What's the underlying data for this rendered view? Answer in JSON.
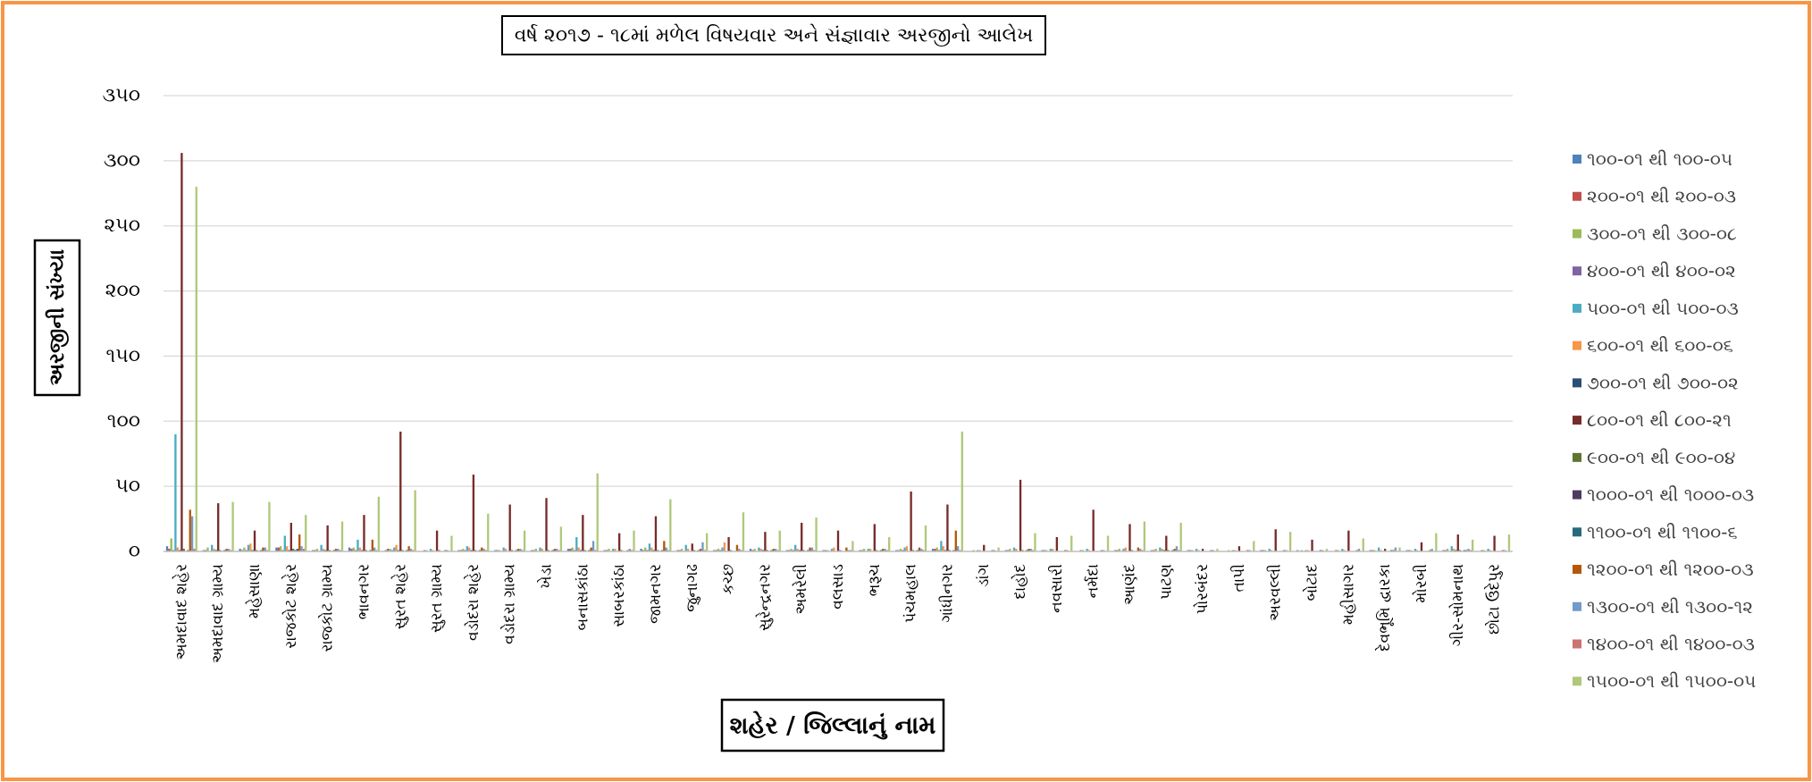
{
  "chart_data": {
    "type": "bar",
    "title": "વર્ષ ૨૦૧૭ - ૧૮માં મળેલ વિષયવાર અને સંજ્ઞાવાર અરજીનો આલેખ",
    "xlabel": "શહેર / જિલ્લાનું નામ",
    "ylabel": "અરજીની સંખ્યા",
    "ylim": [
      0,
      350
    ],
    "y_ticks": [
      0,
      50,
      100,
      150,
      200,
      250,
      300,
      350
    ],
    "y_tick_labels": [
      "૦",
      "૫૦",
      "૧૦૦",
      "૧૫૦",
      "૨૦૦",
      "૨૫૦",
      "૩૦૦",
      "૩૫૦"
    ],
    "grid": true,
    "legend": "right",
    "categories": [
      "અમદાવાદ શહેર",
      "અમદાવાદ ગ્રામ્ય",
      "મહેસાણા",
      "રાજકોટ શહેર",
      "રાજકોટ ગ્રામ્ય",
      "ભાવનગર",
      "સુરત શહેર",
      "સુરત ગ્રામ્ય",
      "વડોદરા શહેર",
      "વડોદરા ગ્રામ્ય",
      "ખેડા",
      "બનાસકાંઠા",
      "સાબરકાંઠા",
      "જામનગર",
      "જુનાગઢ",
      "કચ્છ",
      "સુરેન્દ્રનગર",
      "અમરેલી",
      "વલસાડ",
      "ભરૂચ",
      "પંચમહાલ",
      "ગાંધીનગર",
      "ડાંગ",
      "દાહોદ",
      "નવસારી",
      "નર્મદા",
      "આણંદ",
      "પાટણ",
      "પોરબંદર",
      "તાપી",
      "અરવલ્લી",
      "બોટાદ",
      "મહીસાગર",
      "દેવભૂમિ દ્વારકા",
      "મોરબી",
      "ગીર-સોમનાથ",
      "છોટા ઉદેપુર"
    ],
    "series": [
      {
        "name": "૧૦૦-૦૧ થી ૧૦૦-૦૫",
        "color": "#4F81BD",
        "values": [
          4,
          1,
          2,
          3,
          1,
          3,
          1,
          0,
          1,
          1,
          1,
          2,
          1,
          2,
          1,
          1,
          2,
          1,
          1,
          1,
          1,
          2,
          0,
          1,
          1,
          0,
          1,
          1,
          1,
          0,
          1,
          1,
          0,
          1,
          1,
          1,
          0
        ]
      },
      {
        "name": "૨૦૦-૦૧ થી ૨૦૦-૦૩",
        "color": "#C0504D",
        "values": [
          2,
          1,
          1,
          3,
          1,
          2,
          2,
          1,
          1,
          1,
          1,
          2,
          1,
          1,
          1,
          1,
          1,
          1,
          1,
          1,
          1,
          2,
          0,
          1,
          1,
          1,
          1,
          1,
          1,
          0,
          1,
          0,
          1,
          1,
          1,
          1,
          1
        ]
      },
      {
        "name": "૩૦૦-૦૧ થી ૩૦૦-૦૮",
        "color": "#9BBB59",
        "values": [
          10,
          3,
          3,
          4,
          2,
          3,
          2,
          1,
          2,
          1,
          2,
          3,
          2,
          3,
          2,
          2,
          2,
          2,
          1,
          2,
          2,
          3,
          1,
          2,
          1,
          1,
          2,
          2,
          1,
          1,
          1,
          1,
          1,
          1,
          1,
          2,
          1
        ]
      },
      {
        "name": "૪૦૦-૦૧ થી ૪૦૦-૦૨",
        "color": "#8064A2",
        "values": [
          1,
          0,
          1,
          1,
          0,
          1,
          1,
          0,
          1,
          0,
          0,
          1,
          0,
          1,
          0,
          1,
          0,
          1,
          0,
          0,
          1,
          1,
          0,
          0,
          0,
          0,
          0,
          0,
          0,
          0,
          0,
          0,
          0,
          0,
          0,
          0,
          0
        ]
      },
      {
        "name": "૫૦૦-૦૧ થી ૫૦૦-૦૩",
        "color": "#4BACC6",
        "values": [
          90,
          5,
          5,
          12,
          5,
          9,
          3,
          2,
          4,
          3,
          3,
          11,
          2,
          6,
          5,
          3,
          3,
          5,
          2,
          2,
          3,
          8,
          1,
          3,
          2,
          2,
          2,
          3,
          2,
          1,
          2,
          1,
          2,
          3,
          2,
          4,
          2
        ]
      },
      {
        "name": "૬૦૦-૦૧ થી ૬૦૦-૦૬",
        "color": "#F79646",
        "values": [
          3,
          2,
          6,
          4,
          2,
          3,
          5,
          1,
          3,
          2,
          2,
          3,
          2,
          3,
          2,
          7,
          2,
          2,
          3,
          2,
          4,
          4,
          1,
          2,
          2,
          1,
          3,
          2,
          1,
          1,
          1,
          1,
          1,
          1,
          1,
          2,
          1
        ]
      },
      {
        "name": "૭૦૦-૦૧ થી ૭૦૦-૦૨",
        "color": "#2C4D75",
        "values": [
          1,
          1,
          1,
          1,
          1,
          1,
          1,
          0,
          1,
          0,
          0,
          1,
          0,
          1,
          0,
          0,
          1,
          1,
          0,
          0,
          0,
          1,
          0,
          0,
          0,
          0,
          0,
          1,
          0,
          0,
          0,
          0,
          0,
          0,
          0,
          1,
          0
        ]
      },
      {
        "name": "૮૦૦-૦૧ થી ૮૦૦-૨૧",
        "color": "#772C2A",
        "values": [
          306,
          37,
          16,
          22,
          20,
          28,
          92,
          16,
          59,
          36,
          41,
          28,
          14,
          27,
          6,
          11,
          15,
          22,
          16,
          21,
          46,
          36,
          5,
          55,
          11,
          32,
          21,
          12,
          2,
          4,
          17,
          9,
          16,
          2,
          7,
          13,
          12
        ]
      },
      {
        "name": "૯૦૦-૦૧ થી ૯૦૦-૦૪",
        "color": "#5F7530",
        "values": [
          2,
          1,
          1,
          2,
          1,
          1,
          1,
          1,
          1,
          1,
          1,
          1,
          1,
          1,
          1,
          1,
          1,
          1,
          1,
          1,
          1,
          1,
          0,
          1,
          0,
          0,
          1,
          1,
          0,
          0,
          0,
          0,
          0,
          0,
          0,
          1,
          0
        ]
      },
      {
        "name": "૧૦૦૦-૦૧ થી ૧૦૦૦-૦૩",
        "color": "#4D3B62",
        "values": [
          0,
          0,
          0,
          1,
          0,
          0,
          0,
          0,
          0,
          0,
          0,
          0,
          0,
          0,
          0,
          0,
          0,
          0,
          0,
          0,
          0,
          0,
          0,
          0,
          0,
          0,
          0,
          0,
          0,
          0,
          0,
          0,
          0,
          0,
          0,
          0,
          0
        ]
      },
      {
        "name": "૧૧૦૦-૦૧ થી ૧૧૦૦-૬",
        "color": "#276A7C",
        "values": [
          1,
          1,
          1,
          2,
          1,
          1,
          1,
          0,
          1,
          1,
          1,
          1,
          0,
          1,
          1,
          0,
          1,
          1,
          0,
          1,
          1,
          1,
          0,
          1,
          0,
          0,
          0,
          1,
          0,
          0,
          0,
          0,
          0,
          1,
          0,
          1,
          0
        ]
      },
      {
        "name": "૧૨૦૦-૦૧ થી ૧૨૦૦-૦૩",
        "color": "#B65708",
        "values": [
          32,
          2,
          3,
          13,
          2,
          9,
          4,
          1,
          3,
          2,
          2,
          3,
          1,
          8,
          2,
          5,
          2,
          3,
          3,
          2,
          3,
          16,
          1,
          2,
          1,
          1,
          3,
          2,
          1,
          1,
          1,
          1,
          1,
          1,
          1,
          1,
          1
        ]
      },
      {
        "name": "૧૩૦૦-૦૧ થી ૧૩૦૦-૧૨",
        "color": "#729ACA",
        "values": [
          27,
          2,
          3,
          4,
          2,
          3,
          2,
          1,
          2,
          2,
          2,
          8,
          2,
          3,
          7,
          2,
          2,
          3,
          1,
          2,
          2,
          4,
          1,
          2,
          1,
          1,
          2,
          4,
          1,
          1,
          1,
          1,
          2,
          3,
          2,
          2,
          1
        ]
      },
      {
        "name": "૧૪૦૦-૦૧ થી ૧૪૦૦-૦૩",
        "color": "#CD7371",
        "values": [
          2,
          1,
          1,
          2,
          1,
          1,
          1,
          0,
          1,
          1,
          1,
          1,
          1,
          1,
          1,
          1,
          1,
          1,
          1,
          1,
          1,
          1,
          0,
          1,
          0,
          0,
          1,
          1,
          0,
          0,
          0,
          0,
          0,
          0,
          0,
          1,
          0
        ]
      },
      {
        "name": "૧૫૦૦-૦૧ થી ૧૫૦૦-૦૫",
        "color": "#AFC97A",
        "values": [
          280,
          38,
          38,
          28,
          23,
          42,
          47,
          12,
          29,
          16,
          19,
          60,
          16,
          40,
          14,
          30,
          16,
          26,
          8,
          11,
          20,
          92,
          3,
          14,
          12,
          12,
          23,
          22,
          2,
          8,
          15,
          2,
          10,
          3,
          14,
          9,
          13
        ]
      }
    ]
  },
  "style": {
    "border_color": "#F79646"
  }
}
